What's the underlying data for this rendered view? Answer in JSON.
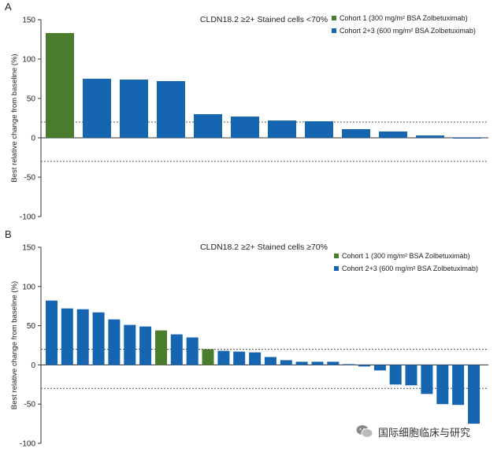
{
  "colors": {
    "cohort1": "#4a7c2e",
    "cohort23": "#1565b0",
    "axis": "#333333",
    "ref": "#555555"
  },
  "watermark": {
    "text": "国际细胞临床与研究"
  },
  "chart_data": [
    {
      "panel": "A",
      "type": "bar",
      "title": "CLDN18.2 ≥2+ Stained cells <70%",
      "ylabel": "Best relative change from baseline (%)",
      "xlabel": "",
      "ylim": [
        -100,
        150
      ],
      "yticks": [
        150,
        100,
        50,
        0,
        -50,
        -100
      ],
      "reference_lines": [
        20,
        -30
      ],
      "legend_position": "top-right",
      "legend": [
        {
          "label": "Cohort 1 (300 mg/m² BSA Zolbetuximab)",
          "color": "cohort1"
        },
        {
          "label": "Cohort 2+3 (600 mg/m² BSA Zolbetuximab)",
          "color": "cohort23"
        }
      ],
      "values": [
        133,
        75,
        74,
        72,
        30,
        27,
        22,
        21,
        11,
        8,
        3,
        -1
      ],
      "cohort": [
        "cohort1",
        "cohort23",
        "cohort23",
        "cohort23",
        "cohort23",
        "cohort23",
        "cohort23",
        "cohort23",
        "cohort23",
        "cohort23",
        "cohort23",
        "cohort23"
      ]
    },
    {
      "panel": "B",
      "type": "bar",
      "title": "CLDN18.2 ≥2+ Stained cells ≥70%",
      "ylabel": "Best relative change from baseline (%)",
      "xlabel": "",
      "ylim": [
        -100,
        150
      ],
      "yticks": [
        150,
        100,
        50,
        0,
        -50,
        -100
      ],
      "reference_lines": [
        20,
        -30
      ],
      "legend_position": "top-right",
      "legend": [
        {
          "label": "Cohort 1 (300 mg/m² BSA Zolbetuximab)",
          "color": "cohort1"
        },
        {
          "label": "Cohort 2+3 (600 mg/m² BSA Zolbetuximab)",
          "color": "cohort23"
        }
      ],
      "values": [
        82,
        72,
        71,
        67,
        58,
        51,
        49,
        44,
        39,
        35,
        20,
        18,
        17,
        16,
        10,
        6,
        4,
        4,
        4,
        0,
        -2,
        -7,
        -25,
        -26,
        -37,
        -50,
        -51,
        -75
      ],
      "cohort": [
        "cohort23",
        "cohort23",
        "cohort23",
        "cohort23",
        "cohort23",
        "cohort23",
        "cohort23",
        "cohort1",
        "cohort23",
        "cohort23",
        "cohort1",
        "cohort23",
        "cohort23",
        "cohort23",
        "cohort23",
        "cohort23",
        "cohort23",
        "cohort23",
        "cohort23",
        "cohort23",
        "cohort23",
        "cohort23",
        "cohort23",
        "cohort23",
        "cohort23",
        "cohort23",
        "cohort23",
        "cohort23"
      ]
    }
  ]
}
